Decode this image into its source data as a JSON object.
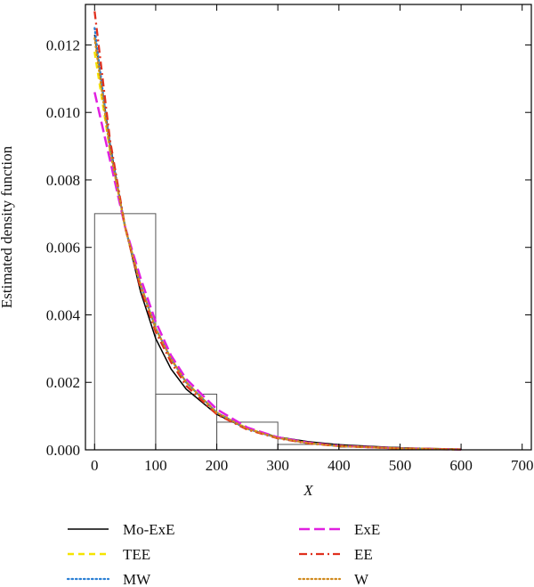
{
  "chart_data": {
    "type": "line",
    "xlabel": "X",
    "ylabel": "Estimated density function",
    "xlim": [
      -15,
      715
    ],
    "ylim": [
      0,
      0.0132
    ],
    "x_ticks": [
      0,
      100,
      200,
      300,
      400,
      500,
      600,
      700
    ],
    "y_ticks": [
      0.0,
      0.002,
      0.004,
      0.006,
      0.008,
      0.01,
      0.012
    ],
    "x_tick_labels": [
      "0",
      "100",
      "200",
      "300",
      "400",
      "500",
      "600",
      "700"
    ],
    "y_tick_labels": [
      "0.000",
      "0.002",
      "0.004",
      "0.006",
      "0.008",
      "0.010",
      "0.012"
    ],
    "histogram": {
      "bins": [
        [
          0,
          100
        ],
        [
          100,
          200
        ],
        [
          200,
          300
        ],
        [
          300,
          400
        ],
        [
          400,
          500
        ],
        [
          500,
          600
        ]
      ],
      "densities": [
        0.007,
        0.00165,
        0.00082,
        0.00016,
        8e-05,
        2e-05
      ]
    },
    "legend_position": "below-plot",
    "series": [
      {
        "name": "Mo-ExE",
        "color": "#000000",
        "style": "solid",
        "x": [
          0,
          25,
          50,
          75,
          100,
          125,
          150,
          200,
          250,
          300,
          350,
          400,
          500,
          600
        ],
        "y": [
          0.0123,
          0.0091,
          0.0066,
          0.0047,
          0.0033,
          0.0024,
          0.0018,
          0.00105,
          0.00062,
          0.00038,
          0.00024,
          0.00015,
          6e-05,
          2e-05
        ]
      },
      {
        "name": "TEE",
        "color": "#f5e400",
        "style": "dashed",
        "x": [
          0,
          25,
          50,
          75,
          100,
          125,
          150,
          200,
          250,
          300,
          350,
          400,
          500,
          600
        ],
        "y": [
          0.0118,
          0.0089,
          0.0066,
          0.0049,
          0.0036,
          0.0027,
          0.002,
          0.0011,
          0.00063,
          0.00036,
          0.0002,
          0.00011,
          4e-05,
          1e-05
        ]
      },
      {
        "name": "MW",
        "color": "#2a7fd4",
        "style": "dotted",
        "x": [
          0,
          25,
          50,
          75,
          100,
          125,
          150,
          200,
          250,
          300,
          350,
          400,
          500,
          600
        ],
        "y": [
          0.0125,
          0.009,
          0.0066,
          0.0049,
          0.0036,
          0.0027,
          0.002,
          0.0011,
          0.00062,
          0.00035,
          0.0002,
          0.00011,
          4e-05,
          1e-05
        ]
      },
      {
        "name": "ExE",
        "color": "#e020e0",
        "style": "longdash",
        "x": [
          0,
          25,
          50,
          75,
          100,
          125,
          150,
          200,
          250,
          300,
          350,
          400,
          500,
          600
        ],
        "y": [
          0.0106,
          0.0086,
          0.0066,
          0.0051,
          0.0038,
          0.0028,
          0.0021,
          0.0012,
          0.00066,
          0.00037,
          0.00021,
          0.00012,
          4e-05,
          1e-05
        ]
      },
      {
        "name": "EE",
        "color": "#e0301e",
        "style": "dashdot",
        "x": [
          0,
          25,
          50,
          75,
          100,
          125,
          150,
          200,
          250,
          300,
          350,
          400,
          500,
          600
        ],
        "y": [
          0.013,
          0.0092,
          0.0066,
          0.0048,
          0.0035,
          0.0026,
          0.0019,
          0.00105,
          0.0006,
          0.00034,
          0.00019,
          0.00011,
          4e-05,
          1e-05
        ]
      },
      {
        "name": "W",
        "color": "#d08a1e",
        "style": "dotted",
        "x": [
          0,
          25,
          50,
          75,
          100,
          125,
          150,
          200,
          250,
          300,
          350,
          400,
          500,
          600
        ],
        "y": [
          0.0122,
          0.0089,
          0.0066,
          0.0049,
          0.0036,
          0.0027,
          0.002,
          0.0011,
          0.00062,
          0.00035,
          0.0002,
          0.00011,
          4e-05,
          1e-05
        ]
      }
    ]
  }
}
